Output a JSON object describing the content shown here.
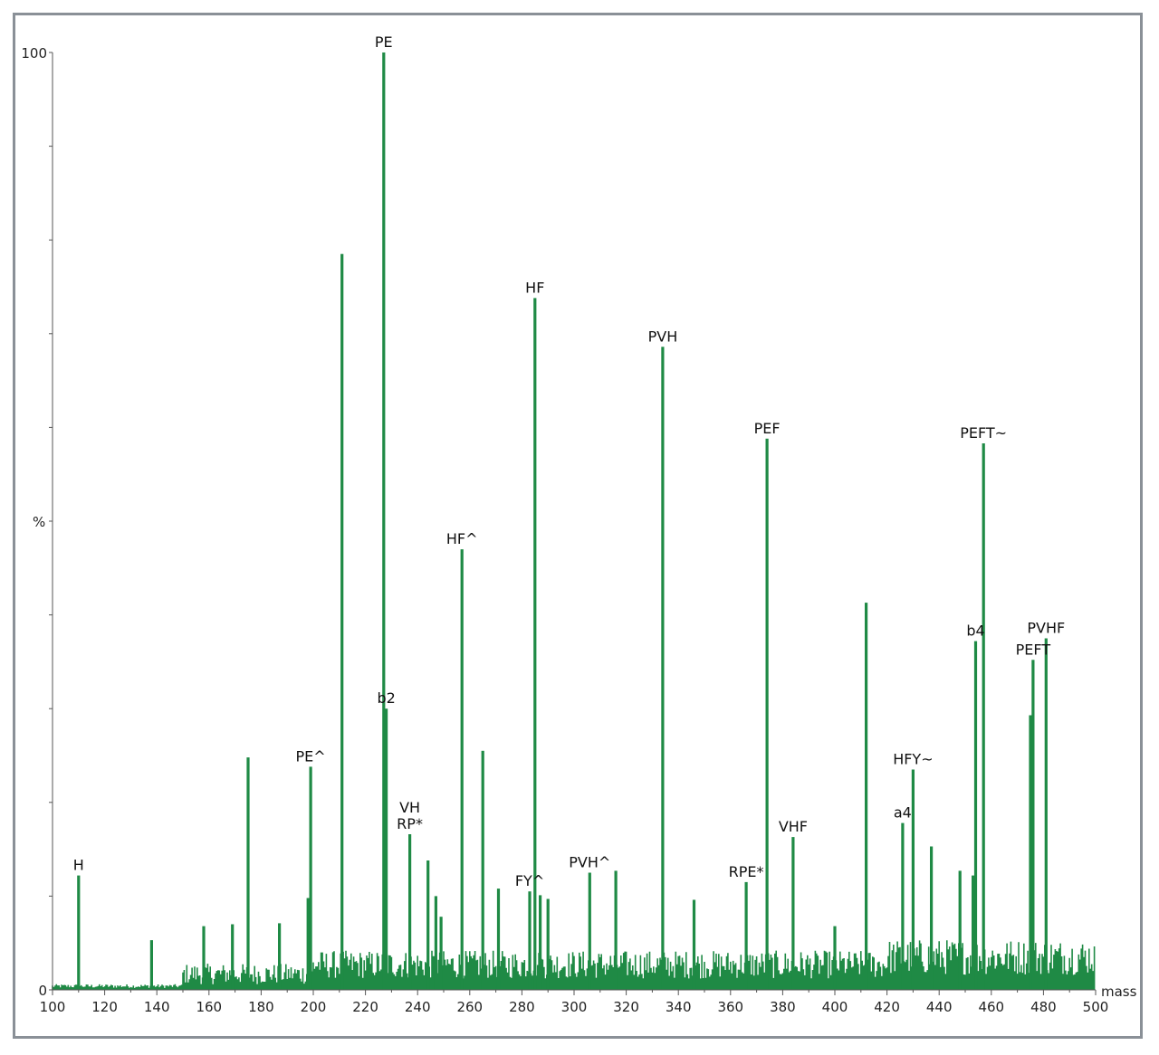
{
  "chart_data": {
    "type": "bar",
    "title": "",
    "xlabel": "mass",
    "ylabel": "%",
    "xlim": [
      100,
      500
    ],
    "ylim": [
      0,
      100
    ],
    "x_ticks": [
      100,
      120,
      140,
      160,
      180,
      200,
      220,
      240,
      260,
      280,
      300,
      320,
      340,
      360,
      380,
      400,
      420,
      440,
      460,
      480,
      500
    ],
    "y_ticks": [
      0,
      100
    ],
    "bar_color": "#1f8a45",
    "labeled_peaks": [
      {
        "mass": 110,
        "intensity": 12.2,
        "label": "H"
      },
      {
        "mass": 199,
        "intensity": 23.8,
        "label": "PE^"
      },
      {
        "mass": 227,
        "intensity": 100,
        "label": "PE"
      },
      {
        "mass": 228,
        "intensity": 30.0,
        "label": "b2"
      },
      {
        "mass": 237,
        "intensity": 16.6,
        "label": "VH\nRP*"
      },
      {
        "mass": 257,
        "intensity": 47.0,
        "label": "HF^"
      },
      {
        "mass": 285,
        "intensity": 73.8,
        "label": "HF"
      },
      {
        "mass": 283,
        "intensity": 10.5,
        "label": "FY^"
      },
      {
        "mass": 306,
        "intensity": 12.5,
        "label": "PVH^"
      },
      {
        "mass": 334,
        "intensity": 68.6,
        "label": "PVH"
      },
      {
        "mass": 366,
        "intensity": 11.5,
        "label": "RPE*"
      },
      {
        "mass": 374,
        "intensity": 58.8,
        "label": "PEF"
      },
      {
        "mass": 384,
        "intensity": 16.3,
        "label": "VHF"
      },
      {
        "mass": 426,
        "intensity": 17.8,
        "label": "a4"
      },
      {
        "mass": 430,
        "intensity": 23.5,
        "label": "HFY~"
      },
      {
        "mass": 454,
        "intensity": 37.2,
        "label": "b4"
      },
      {
        "mass": 457,
        "intensity": 58.3,
        "label": "PEFT~"
      },
      {
        "mass": 476,
        "intensity": 35.2,
        "label": "PEFT"
      },
      {
        "mass": 481,
        "intensity": 37.5,
        "label": "PVHF"
      }
    ],
    "unlabeled_peaks": [
      {
        "mass": 175,
        "intensity": 24.8
      },
      {
        "mass": 211,
        "intensity": 78.5
      },
      {
        "mass": 265,
        "intensity": 25.5
      },
      {
        "mass": 412,
        "intensity": 41.3
      },
      {
        "mass": 475,
        "intensity": 29.3
      },
      {
        "mass": 198,
        "intensity": 9.8
      },
      {
        "mass": 187,
        "intensity": 7.1
      },
      {
        "mass": 169,
        "intensity": 7.0
      },
      {
        "mass": 158,
        "intensity": 6.8
      },
      {
        "mass": 138,
        "intensity": 5.3
      },
      {
        "mass": 244,
        "intensity": 13.8
      },
      {
        "mass": 247,
        "intensity": 10.0
      },
      {
        "mass": 249,
        "intensity": 7.8
      },
      {
        "mass": 271,
        "intensity": 10.8
      },
      {
        "mass": 287,
        "intensity": 10.1
      },
      {
        "mass": 290,
        "intensity": 9.7
      },
      {
        "mass": 316,
        "intensity": 12.7
      },
      {
        "mass": 346,
        "intensity": 9.6
      },
      {
        "mass": 400,
        "intensity": 6.8
      },
      {
        "mass": 437,
        "intensity": 15.3
      },
      {
        "mass": 448,
        "intensity": 12.7
      },
      {
        "mass": 453,
        "intensity": 12.2
      }
    ]
  }
}
